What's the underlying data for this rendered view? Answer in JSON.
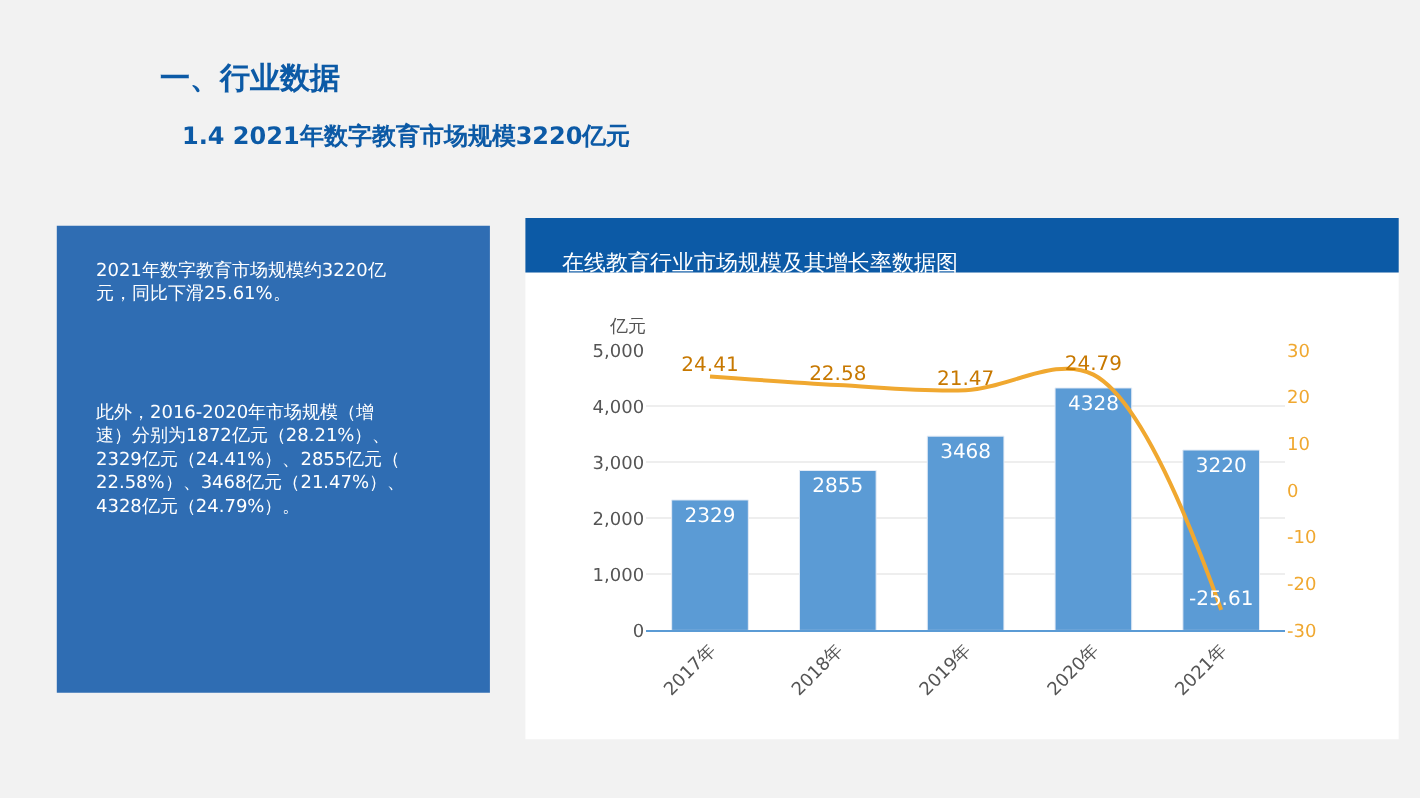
{
  "chart_data": {
    "type": "bar",
    "title": "在线教育行业市场规模及其增长率数据图",
    "ylabel": "亿元",
    "categories": [
      "2017年",
      "2018年",
      "2019年",
      "2020年",
      "2021年"
    ],
    "series": [
      {
        "color": "#5b9bd5",
        "values": [
          2329,
          2855,
          3468,
          4328,
          3220
        ]
      },
      {
        "type": "line",
        "axis": "y2",
        "color": "#f0a830",
        "values": [
          24.41,
          22.58,
          21.47,
          24.79,
          -25.61
        ]
      }
    ],
    "ylim": [
      0,
      5000
    ],
    "yticks": [
      0,
      {
        "value": 1000,
        "label": "1,000"
      },
      {
        "value": 2000,
        "label": "2,000"
      },
      {
        "value": 3000,
        "label": "3,000"
      },
      {
        "value": 4000,
        "label": "4,000"
      },
      {
        "value": 5000,
        "label": "5,000"
      }
    ],
    "y2lim": [
      -30,
      30
    ],
    "y2ticks": [
      -30,
      -20,
      -10,
      0,
      10,
      20,
      30
    ],
    "grid": "y",
    "legend": false,
    "marker": "none",
    "data_labels": true,
    "annotations": [
      "一、行业数据",
      "1.4 2021年数字教育市场规模3220亿元",
      "2021年数字教育市场规模约3220亿元，同比下滑25.61%。",
      "此外，2016-2020年市场规模（增速）分别为1872亿元（28.21%）、2329亿元（24.41%）、2855亿元（22.58%）、3468亿元（21.47%）、4328亿元（24.79%）。"
    ]
  }
}
